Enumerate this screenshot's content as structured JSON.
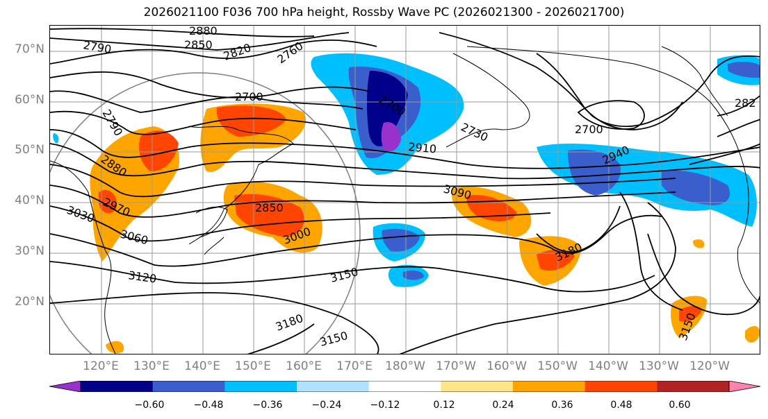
{
  "title": "2026021100 F036 700 hPa height, Rossby Wave PC (2026021300 - 2026021700)",
  "lat_labels": [
    "70°N",
    "60°N",
    "50°N",
    "40°N",
    "30°N",
    "20°N"
  ],
  "lon_labels": [
    "120°E",
    "130°E",
    "140°E",
    "150°E",
    "160°E",
    "170°E",
    "180°W",
    "170°W",
    "160°W",
    "150°W",
    "140°W",
    "130°W",
    "120°W"
  ],
  "contour_labels": [
    "2880",
    "2850",
    "2790",
    "2820",
    "2760",
    "2700",
    "2790",
    "2880",
    "2970",
    "3030",
    "3060",
    "3120",
    "2850",
    "3000",
    "2700",
    "2730",
    "2910",
    "3090",
    "3150",
    "3180",
    "3180",
    "3150",
    "2700",
    "2940",
    "282",
    "3150"
  ],
  "colorbar": {
    "ticks": [
      "−0.60",
      "−0.48",
      "−0.36",
      "−0.24",
      "−0.12",
      "0.12",
      "0.24",
      "0.36",
      "0.48",
      "0.60"
    ],
    "colors": [
      "#9932cc",
      "#00008b",
      "#3a5fcd",
      "#00bfff",
      "#b0e2ff",
      "#ffffff",
      "#ffe58a",
      "#ffa500",
      "#ff4500",
      "#b22222",
      "#ff82ab"
    ]
  }
}
